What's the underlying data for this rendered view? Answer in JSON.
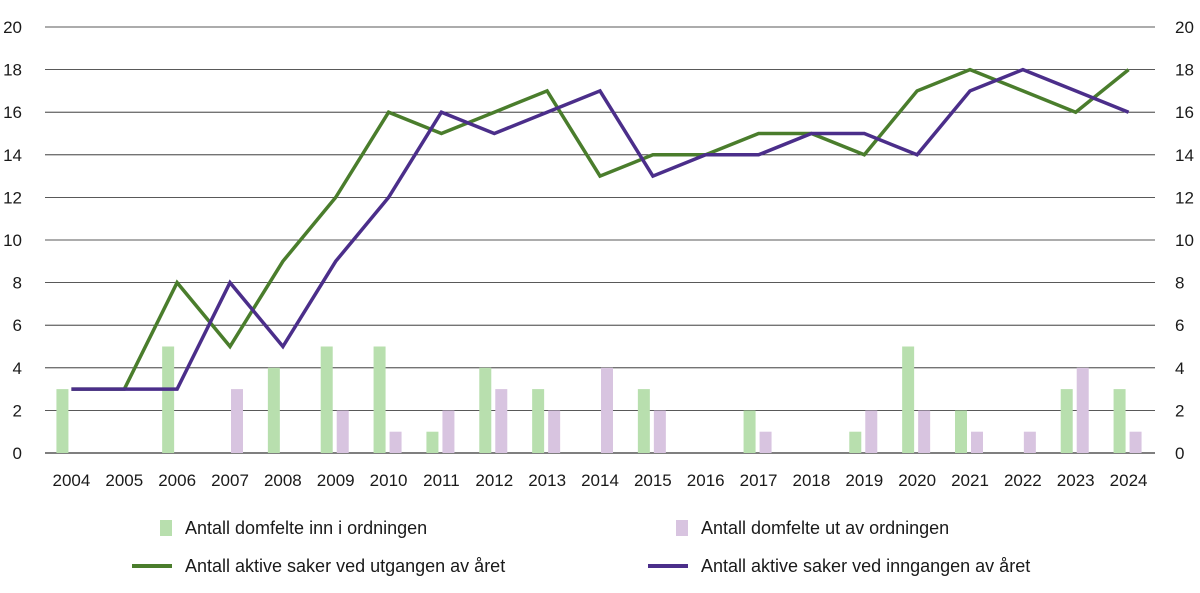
{
  "chart_data": {
    "type": "bar+line",
    "categories": [
      "2004",
      "2005",
      "2006",
      "2007",
      "2008",
      "2009",
      "2010",
      "2011",
      "2012",
      "2013",
      "2014",
      "2015",
      "2016",
      "2017",
      "2018",
      "2019",
      "2020",
      "2021",
      "2022",
      "2023",
      "2024"
    ],
    "bar_series": [
      {
        "name": "Antall domfelte inn i ordningen",
        "color": "#b8dfae",
        "values": [
          3,
          0,
          5,
          0,
          4,
          5,
          5,
          1,
          4,
          3,
          0,
          3,
          0,
          2,
          0,
          1,
          5,
          2,
          0,
          3,
          3
        ]
      },
      {
        "name": "Antall domfelte ut av ordningen",
        "color": "#d8c4e0",
        "values": [
          0,
          0,
          0,
          3,
          0,
          2,
          1,
          2,
          3,
          2,
          4,
          2,
          0,
          1,
          0,
          2,
          2,
          1,
          1,
          4,
          1
        ]
      }
    ],
    "line_series": [
      {
        "name": "Antall aktive saker ved utgangen av året",
        "color": "#4a7d2c",
        "values": [
          3,
          3,
          8,
          5,
          9,
          12,
          16,
          15,
          16,
          17,
          13,
          14,
          14,
          15,
          15,
          14,
          17,
          18,
          17,
          16,
          18
        ]
      },
      {
        "name": "Antall aktive saker ved inngangen av året",
        "color": "#4b2e8a",
        "values": [
          3,
          3,
          3,
          8,
          5,
          9,
          12,
          16,
          15,
          16,
          17,
          13,
          14,
          14,
          15,
          15,
          14,
          17,
          18,
          17,
          16
        ]
      }
    ],
    "y_ticks": [
      "0",
      "2",
      "4",
      "6",
      "8",
      "10",
      "12",
      "14",
      "16",
      "18",
      "20"
    ],
    "ylim": [
      0,
      20
    ],
    "y_step": 2,
    "grid": true,
    "legend_position": "bottom"
  }
}
